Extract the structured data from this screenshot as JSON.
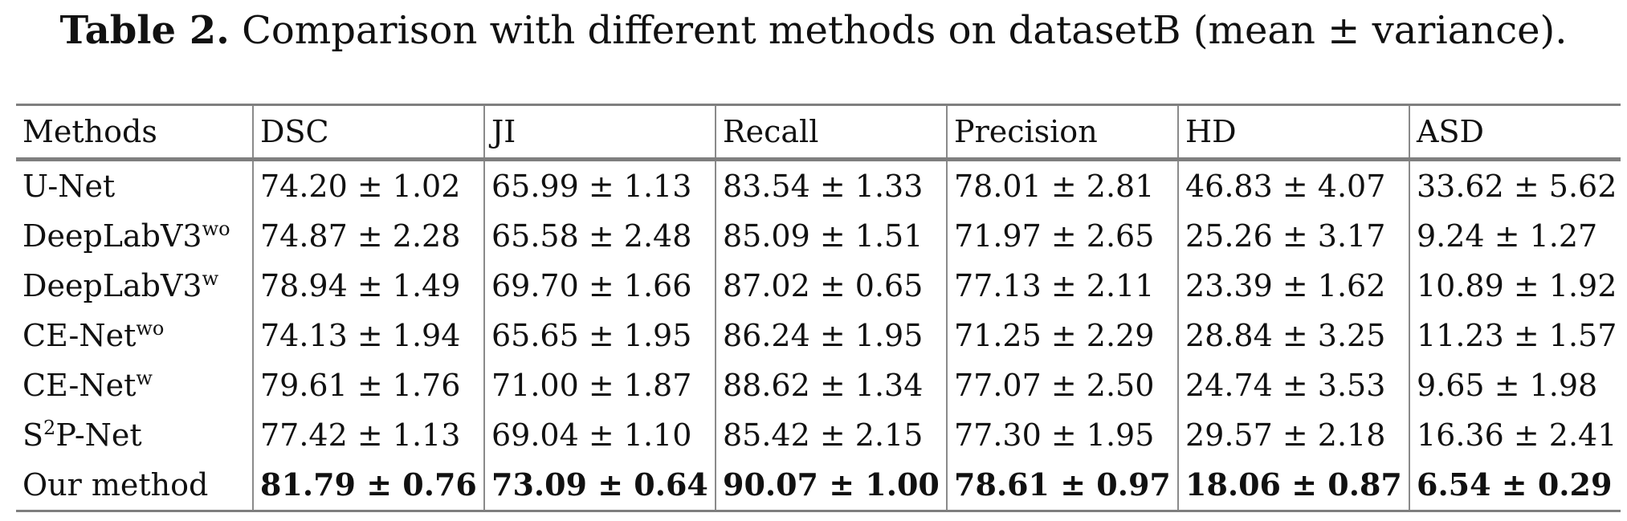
{
  "caption": {
    "label": "Table 2.",
    "text": "Comparison with different methods on datasetB (mean ± variance)."
  },
  "table": {
    "headers": [
      "Methods",
      "DSC",
      "JI",
      "Recall",
      "Precision",
      "HD",
      "ASD"
    ],
    "rows": [
      {
        "method": "U-Net",
        "sup": "",
        "prefix_sup": "",
        "cells": [
          "74.20 ± 1.02",
          "65.99 ± 1.13",
          "83.54 ± 1.33",
          "78.01 ± 2.81",
          "46.83 ± 4.07",
          "33.62 ± 5.62"
        ]
      },
      {
        "method": "DeepLabV3",
        "sup": "wo",
        "prefix_sup": "",
        "cells": [
          "74.87 ± 2.28",
          "65.58 ± 2.48",
          "85.09 ± 1.51",
          "71.97 ± 2.65",
          "25.26 ± 3.17",
          "9.24 ± 1.27"
        ]
      },
      {
        "method": "DeepLabV3",
        "sup": "w",
        "prefix_sup": "",
        "cells": [
          "78.94 ± 1.49",
          "69.70 ± 1.66",
          "87.02 ± 0.65",
          "77.13 ± 2.11",
          "23.39 ± 1.62",
          "10.89 ± 1.92"
        ]
      },
      {
        "method": "CE-Net",
        "sup": "wo",
        "prefix_sup": "",
        "cells": [
          "74.13 ± 1.94",
          "65.65 ± 1.95",
          "86.24 ± 1.95",
          "71.25 ± 2.29",
          "28.84 ± 3.25",
          "11.23 ± 1.57"
        ]
      },
      {
        "method": "CE-Net",
        "sup": "w",
        "prefix_sup": "",
        "cells": [
          "79.61 ± 1.76",
          "71.00 ± 1.87",
          "88.62 ± 1.34",
          "77.07 ± 2.50",
          "24.74 ± 3.53",
          "9.65 ± 1.98"
        ]
      },
      {
        "method_prefix": "S",
        "prefix_sup": "2",
        "method": "P-Net",
        "sup": "",
        "cells": [
          "77.42 ± 1.13",
          "69.04 ± 1.10",
          "85.42 ± 2.15",
          "77.30 ± 1.95",
          "29.57 ± 2.18",
          "16.36 ± 2.41"
        ]
      },
      {
        "method": "Our method",
        "sup": "",
        "prefix_sup": "",
        "bold": true,
        "cells": [
          "81.79 ± 0.76",
          "73.09 ± 0.64",
          "90.07 ± 1.00",
          "78.61 ± 0.97",
          "18.06 ± 0.87",
          "6.54 ± 0.29"
        ]
      }
    ]
  }
}
